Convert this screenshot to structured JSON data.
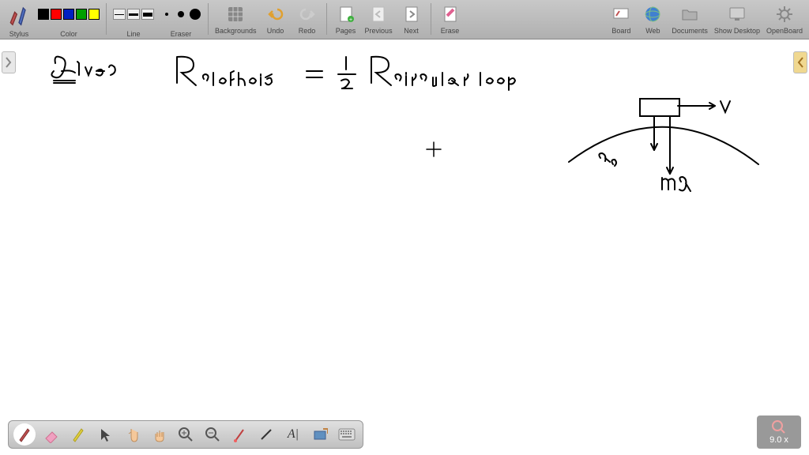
{
  "app": {
    "background_color": "#ffffff",
    "toolbar_bg_top": "#c8c8c8",
    "toolbar_bg_bottom": "#b0b0b0"
  },
  "toolbar": {
    "stylus_label": "Stylus",
    "color_label": "Color",
    "line_label": "Line",
    "eraser_label": "Eraser",
    "backgrounds_label": "Backgrounds",
    "undo_label": "Undo",
    "redo_label": "Redo",
    "pages_label": "Pages",
    "previous_label": "Previous",
    "next_label": "Next",
    "erase_label": "Erase",
    "board_label": "Board",
    "web_label": "Web",
    "documents_label": "Documents",
    "showdesktop_label": "Show Desktop",
    "openboard_label": "OpenBoard",
    "colors": [
      "#000000",
      "#ff0000",
      "#0020c0",
      "#00a000",
      "#ffff00"
    ],
    "line_widths": [
      1,
      3,
      5
    ],
    "dot_sizes": [
      2,
      4,
      7
    ]
  },
  "zoom": {
    "value": "9.0 x"
  },
  "drawing": {
    "stroke_color": "#000000",
    "stroke_width": 2,
    "text_given": "Given",
    "eq_R": "R",
    "eq_clothoid": "clothoid",
    "eq_equals": "=",
    "eq_half_num": "1",
    "eq_half_den": "2",
    "eq_R2": "R",
    "eq_circular": "circular loop",
    "plus": "+",
    "ac_label": "a_c",
    "mg_label": "mg",
    "v_label": "v"
  }
}
